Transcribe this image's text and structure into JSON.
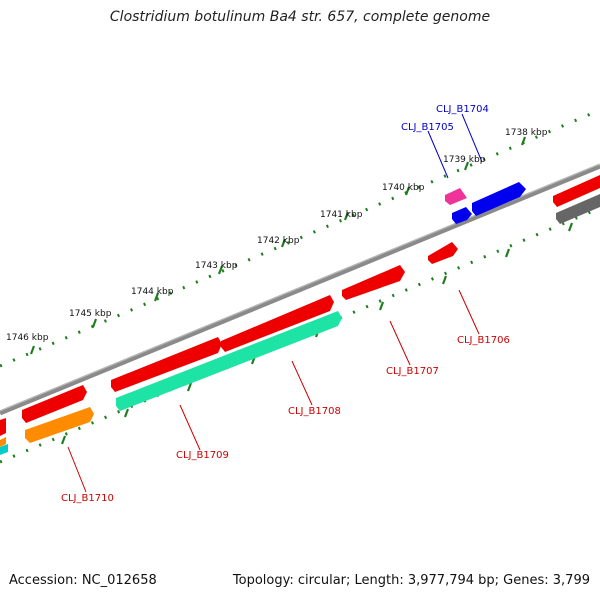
{
  "title": "Clostridium botulinum Ba4 str. 657, complete genome",
  "accession": "Accession: NC_012658",
  "topology": "Topology: circular; Length: 3,977,794 bp; Genes: 3,799",
  "kbp_labels": [
    "1738 kbp",
    "1739 kbp",
    "1740 kbp",
    "1741 kbp",
    "1742 kbp",
    "1743 kbp",
    "1744 kbp",
    "1745 kbp",
    "1746 kbp"
  ],
  "genes": [
    {
      "id": "CLJ_B1704",
      "color": "#0000cc"
    },
    {
      "id": "CLJ_B1705",
      "color": "#0000cc"
    },
    {
      "id": "CLJ_B1706",
      "color": "#cc0000"
    },
    {
      "id": "CLJ_B1707",
      "color": "#cc0000"
    },
    {
      "id": "CLJ_B1708",
      "color": "#cc0000"
    },
    {
      "id": "CLJ_B1709",
      "color": "#cc0000"
    },
    {
      "id": "CLJ_B1710",
      "color": "#cc0000"
    }
  ],
  "colors": {
    "backbone": "#8a8a8a",
    "tick": "#1e7d1e",
    "red_gene": "#ee0000",
    "blue_gene": "#0000ee",
    "magenta_gene": "#ee3399",
    "teal_gene": "#1de3a5",
    "orange_gene": "#ff8c00",
    "cyan_gene": "#00cccc",
    "gray_gene": "#666666"
  }
}
